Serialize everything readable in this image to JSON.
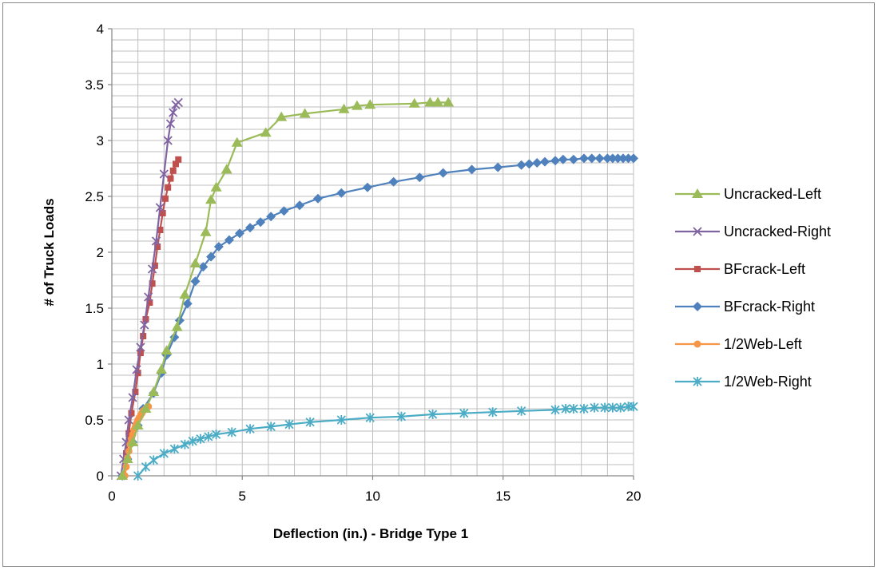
{
  "chart_data": {
    "type": "scatter",
    "title": "",
    "xlabel": "Deflection (in.) - Bridge Type 1",
    "ylabel": "# of Truck Loads",
    "xlim": [
      0,
      20
    ],
    "ylim": [
      0,
      4
    ],
    "x_ticks": [
      "0",
      "5",
      "10",
      "15",
      "20"
    ],
    "y_ticks": [
      "0",
      "0.5",
      "1",
      "1.5",
      "2",
      "2.5",
      "3",
      "3.5",
      "4"
    ],
    "grid": true,
    "legend_position": "right",
    "series": [
      {
        "name": "Uncracked-Left",
        "color": "#9BBB59",
        "marker": "triangle",
        "x": [
          0.4,
          0.6,
          0.8,
          1.0,
          1.3,
          1.6,
          1.9,
          2.1,
          2.5,
          2.8,
          3.2,
          3.6,
          3.8,
          4.0,
          4.4,
          4.8,
          5.9,
          6.5,
          7.4,
          8.9,
          9.4,
          9.9,
          11.6,
          12.2,
          12.5,
          12.9
        ],
        "y": [
          0.0,
          0.15,
          0.3,
          0.45,
          0.6,
          0.75,
          0.95,
          1.12,
          1.33,
          1.62,
          1.9,
          2.18,
          2.47,
          2.58,
          2.74,
          2.98,
          3.07,
          3.21,
          3.24,
          3.28,
          3.31,
          3.32,
          3.33,
          3.34,
          3.34,
          3.34
        ]
      },
      {
        "name": "Uncracked-Right",
        "color": "#8064A2",
        "marker": "x",
        "x": [
          0.35,
          0.45,
          0.55,
          0.65,
          0.8,
          0.95,
          1.1,
          1.25,
          1.4,
          1.55,
          1.7,
          1.85,
          2.0,
          2.15,
          2.25,
          2.35,
          2.45,
          2.55
        ],
        "y": [
          0.0,
          0.15,
          0.3,
          0.5,
          0.7,
          0.95,
          1.15,
          1.35,
          1.6,
          1.85,
          2.1,
          2.4,
          2.7,
          3.0,
          3.15,
          3.25,
          3.32,
          3.34
        ]
      },
      {
        "name": "BFcrack-Left",
        "color": "#C0504D",
        "marker": "square",
        "x": [
          0.45,
          0.55,
          0.65,
          0.75,
          0.9,
          1.0,
          1.1,
          1.2,
          1.3,
          1.45,
          1.55,
          1.65,
          1.75,
          1.85,
          1.95,
          2.05,
          2.15,
          2.25,
          2.35,
          2.45,
          2.55
        ],
        "y": [
          0.0,
          0.2,
          0.38,
          0.56,
          0.75,
          0.92,
          1.1,
          1.25,
          1.4,
          1.55,
          1.72,
          1.88,
          2.05,
          2.2,
          2.35,
          2.48,
          2.58,
          2.66,
          2.73,
          2.79,
          2.83
        ]
      },
      {
        "name": "BFcrack-Right",
        "color": "#4F81BD",
        "marker": "diamond",
        "x": [
          0.4,
          0.6,
          0.8,
          1.0,
          1.2,
          1.6,
          1.9,
          2.1,
          2.4,
          2.6,
          2.9,
          3.2,
          3.5,
          3.8,
          4.1,
          4.5,
          4.9,
          5.3,
          5.7,
          6.1,
          6.6,
          7.2,
          7.9,
          8.8,
          9.8,
          10.8,
          11.8,
          12.7,
          13.8,
          14.8,
          15.7,
          16.0,
          16.3,
          16.6,
          17.0,
          17.3,
          17.7,
          18.1,
          18.4,
          18.7,
          19.0,
          19.2,
          19.4,
          19.6,
          19.8,
          20.0
        ],
        "y": [
          0.0,
          0.15,
          0.3,
          0.45,
          0.6,
          0.74,
          0.92,
          1.08,
          1.24,
          1.39,
          1.54,
          1.74,
          1.87,
          1.96,
          2.05,
          2.11,
          2.17,
          2.22,
          2.27,
          2.32,
          2.37,
          2.42,
          2.48,
          2.53,
          2.58,
          2.63,
          2.67,
          2.71,
          2.74,
          2.76,
          2.78,
          2.79,
          2.8,
          2.81,
          2.82,
          2.83,
          2.83,
          2.84,
          2.84,
          2.84,
          2.84,
          2.84,
          2.84,
          2.84,
          2.84,
          2.84
        ]
      },
      {
        "name": "1/2Web-Left",
        "color": "#F79646",
        "marker": "circle",
        "x": [
          0.5,
          0.55,
          0.6,
          0.65,
          0.7,
          0.75,
          0.8,
          0.85,
          0.9,
          0.95,
          1.0,
          1.05,
          1.1,
          1.15,
          1.2,
          1.3,
          1.4
        ],
        "y": [
          0.0,
          0.08,
          0.16,
          0.22,
          0.28,
          0.33,
          0.37,
          0.41,
          0.44,
          0.47,
          0.5,
          0.52,
          0.54,
          0.56,
          0.58,
          0.6,
          0.62
        ]
      },
      {
        "name": "1/2Web-Right",
        "color": "#4BACC6",
        "marker": "star",
        "x": [
          1.0,
          1.3,
          1.6,
          2.0,
          2.4,
          2.8,
          3.1,
          3.4,
          3.7,
          4.0,
          4.6,
          5.3,
          6.1,
          6.8,
          7.6,
          8.8,
          9.9,
          11.1,
          12.3,
          13.5,
          14.6,
          15.7,
          17.0,
          17.4,
          17.7,
          18.1,
          18.5,
          18.9,
          19.2,
          19.5,
          19.8,
          20.0
        ],
        "y": [
          0.0,
          0.08,
          0.14,
          0.2,
          0.24,
          0.28,
          0.31,
          0.33,
          0.35,
          0.37,
          0.39,
          0.42,
          0.44,
          0.46,
          0.48,
          0.5,
          0.52,
          0.53,
          0.55,
          0.56,
          0.57,
          0.58,
          0.59,
          0.6,
          0.6,
          0.6,
          0.61,
          0.61,
          0.61,
          0.61,
          0.62,
          0.62
        ]
      }
    ]
  }
}
